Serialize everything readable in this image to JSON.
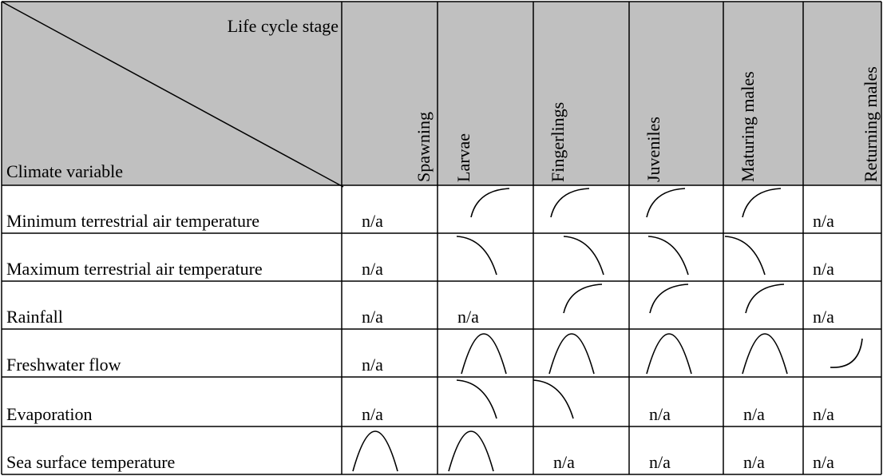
{
  "header": {
    "stage_label": "Life cycle stage",
    "variable_label": "Climate variable",
    "stages": [
      "Spawning",
      "Larvae",
      "Fingerlings",
      "Juveniles",
      "Maturing males",
      "Returning males"
    ]
  },
  "rows": [
    {
      "label": "Minimum terrestrial air temperature",
      "cells": [
        "n/a",
        null,
        null,
        null,
        null,
        "n/a"
      ]
    },
    {
      "label": "Maximum terrestrial air temperature",
      "cells": [
        "n/a",
        null,
        null,
        null,
        null,
        "n/a"
      ]
    },
    {
      "label": "Rainfall",
      "cells": [
        "n/a",
        "n/a",
        null,
        null,
        null,
        "n/a"
      ]
    },
    {
      "label": "Freshwater flow",
      "cells": [
        "n/a",
        null,
        null,
        null,
        null,
        null
      ]
    },
    {
      "label": "Evaporation",
      "cells": [
        "n/a",
        null,
        null,
        "n/a",
        "n/a",
        "n/a"
      ]
    },
    {
      "label": "Sea surface temperature",
      "cells": [
        null,
        null,
        "n/a",
        "n/a",
        "n/a",
        "n/a"
      ]
    }
  ]
}
